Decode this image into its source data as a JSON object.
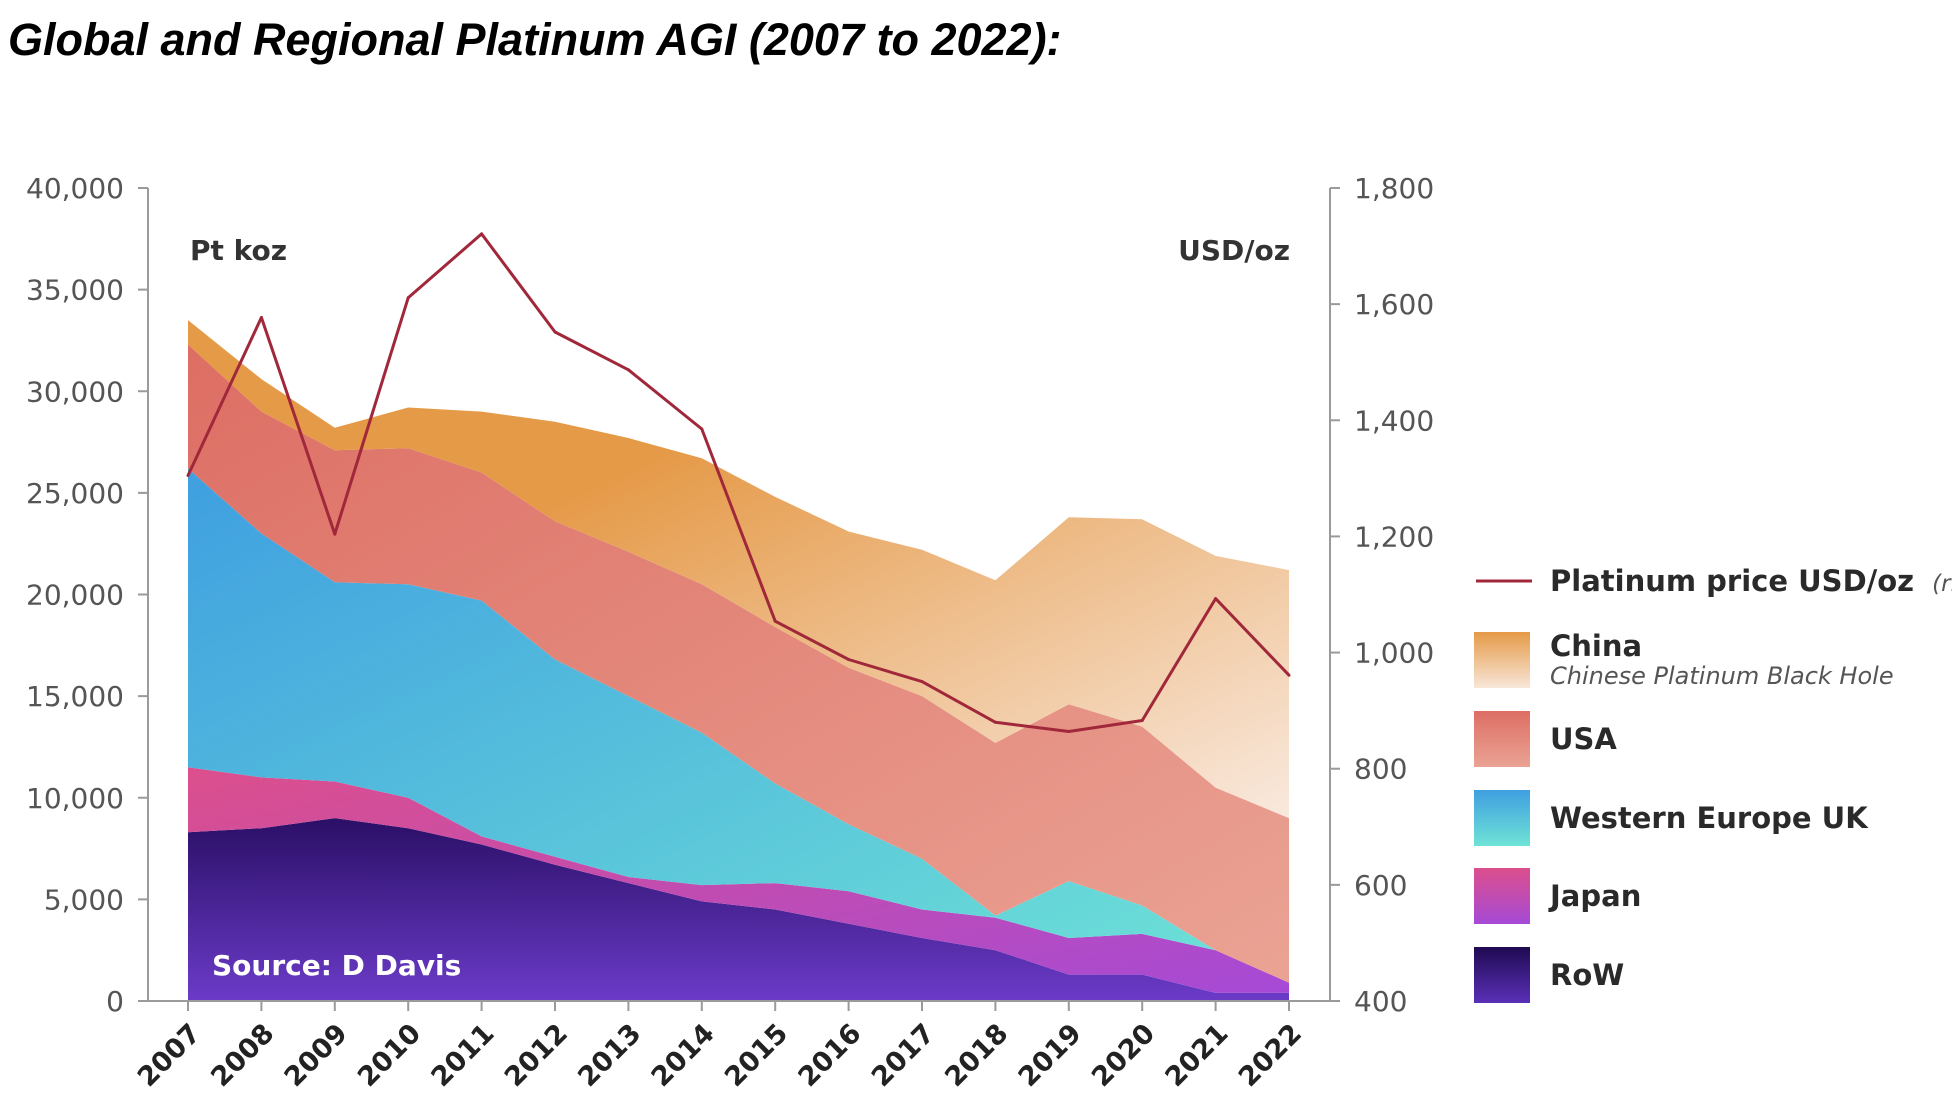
{
  "title": "Global and Regional Platinum AGI (2007 to 2022):",
  "chart_data": {
    "type": "area",
    "stacked": true,
    "categories": [
      "2007",
      "2008",
      "2009",
      "2010",
      "2011",
      "2012",
      "2013",
      "2014",
      "2015",
      "2016",
      "2017",
      "2018",
      "2019",
      "2020",
      "2021",
      "2022"
    ],
    "series": [
      {
        "name": "RoW",
        "color": "#3b1880",
        "values": [
          8300,
          8500,
          9000,
          8500,
          7700,
          6700,
          5800,
          4900,
          4500,
          3800,
          3100,
          2500,
          1300,
          1300,
          400,
          400
        ]
      },
      {
        "name": "Japan",
        "color": "#d64a9a",
        "values": [
          3200,
          2500,
          1800,
          1500,
          400,
          400,
          300,
          800,
          1300,
          1600,
          1400,
          1600,
          1800,
          2000,
          2100,
          500
        ]
      },
      {
        "name": "Western Europe UK",
        "color": "#45b9de",
        "values": [
          14700,
          12000,
          9800,
          10500,
          11600,
          9700,
          8900,
          7500,
          4900,
          3300,
          2500,
          100,
          2800,
          1400,
          0,
          0
        ]
      },
      {
        "name": "USA",
        "color": "#e07e72",
        "values": [
          6100,
          6000,
          6500,
          6700,
          6300,
          6800,
          7100,
          7300,
          7700,
          7700,
          8000,
          8500,
          8700,
          8800,
          8000,
          8100
        ]
      },
      {
        "name": "China",
        "color": "#e8a151",
        "values": [
          1200,
          1600,
          1100,
          2000,
          3000,
          4900,
          5600,
          6200,
          6400,
          6700,
          7200,
          8000,
          9200,
          10200,
          11400,
          12200
        ]
      }
    ],
    "line_series": {
      "name": "Platinum price USD/oz",
      "axis": "rhs",
      "color": "#a0283a",
      "values": [
        1305,
        1577,
        1204,
        1611,
        1721,
        1552,
        1487,
        1385,
        1054,
        988,
        950,
        880,
        864,
        883,
        1093,
        961
      ]
    },
    "ylim": [
      0,
      40000
    ],
    "yticks": [
      "0",
      "5,000",
      "10,000",
      "15,000",
      "20,000",
      "25,000",
      "30,000",
      "35,000",
      "40,000"
    ],
    "y2lim": [
      400,
      1800
    ],
    "y2ticks": [
      "400",
      "600",
      "800",
      "1,000",
      "1,200",
      "1,400",
      "1,600",
      "1,800"
    ],
    "ylabel": "Pt koz",
    "y2label": "USD/oz",
    "annotation": "Source: D Davis",
    "legend": {
      "position": "right",
      "line_label": "Platinum price USD/oz",
      "line_suffix": "(rhs)",
      "items": [
        {
          "label": "China",
          "sublabel": "Chinese Platinum Black Hole"
        },
        {
          "label": "USA"
        },
        {
          "label": "Western Europe UK"
        },
        {
          "label": "Japan"
        },
        {
          "label": "RoW"
        }
      ]
    }
  }
}
